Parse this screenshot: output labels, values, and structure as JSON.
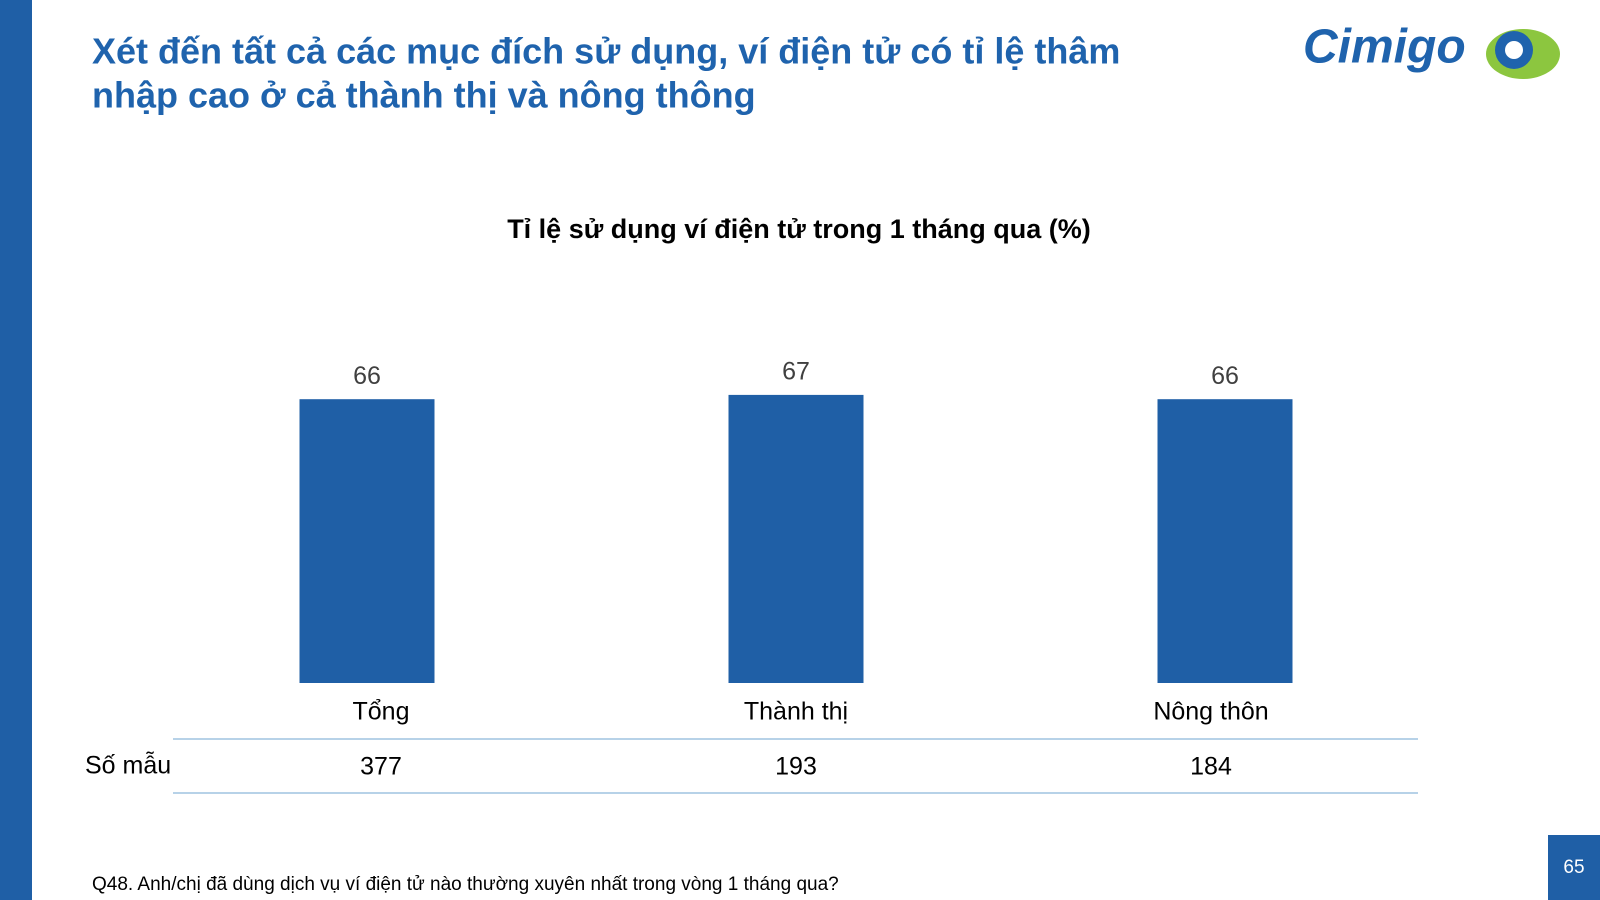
{
  "header": {
    "title_lines": [
      "Xét đến tất cả các mục đích sử dụng, ví điện tử có tỉ lệ thâm",
      "nhập cao ở cả thành thị và nông thông"
    ],
    "logo": "Cimigo"
  },
  "chart_data": {
    "type": "bar",
    "title": "Tỉ lệ sử dụng ví điện tử trong 1 tháng qua (%)",
    "categories": [
      "Tổng",
      "Thành thị",
      "Nông thôn"
    ],
    "values": [
      66,
      67,
      66
    ],
    "color": "#1f5fa6"
  },
  "sample_size": {
    "label": "Số mẫu",
    "values": [
      377,
      193,
      184
    ]
  },
  "footnote": "Q48. Anh/chị đã dùng dịch vụ ví điện tử nào thường xuyên nhất trong vòng 1 tháng qua?",
  "page_number": "65"
}
